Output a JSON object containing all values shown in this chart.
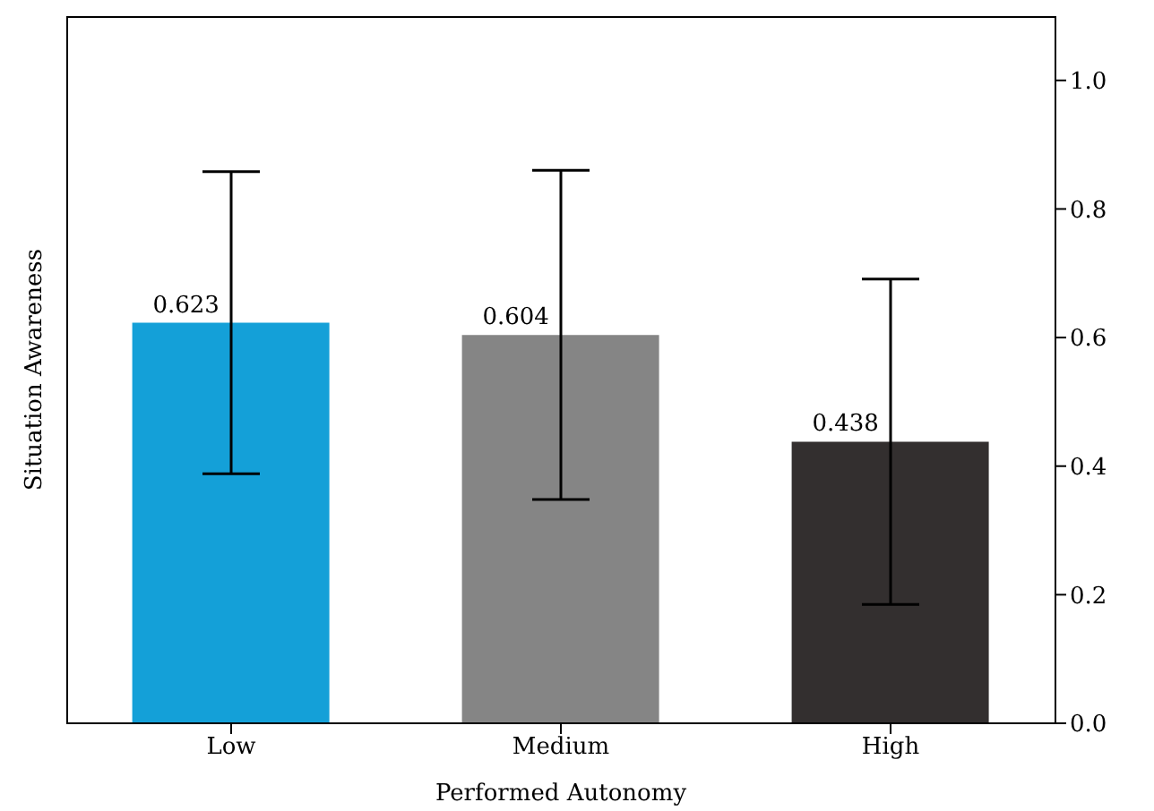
{
  "chart_data": {
    "type": "bar",
    "xlabel": "Performed Autonomy",
    "ylabel": "Situation Awareness",
    "categories": [
      "Low",
      "Medium",
      "High"
    ],
    "values": [
      0.623,
      0.604,
      0.438
    ],
    "colors": [
      "#14a0d8",
      "#858585",
      "#332f2f"
    ],
    "errors": [
      [
        0.388,
        0.858
      ],
      [
        0.348,
        0.86
      ],
      [
        0.185,
        0.691
      ]
    ],
    "data_labels": true,
    "ylim": [
      0,
      1.1
    ],
    "yticks": [
      {
        "value": 0,
        "label": "0.0"
      },
      0.2,
      0.4,
      0.6,
      0.8,
      {
        "value": 1,
        "label": "1.0"
      }
    ]
  }
}
